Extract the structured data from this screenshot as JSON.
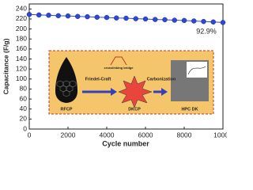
{
  "chart_data": {
    "type": "line",
    "x_label": "Cycle number",
    "y_label": "Capacitance (F/g)",
    "x": [
      0,
      500,
      1000,
      1500,
      2000,
      2500,
      3000,
      3500,
      4000,
      4500,
      5000,
      5500,
      6000,
      6500,
      7000,
      7500,
      8000,
      8500,
      9000,
      9500,
      10000
    ],
    "series": [
      {
        "color": "#2d48d8",
        "values": [
          229,
          228,
          227.5,
          226.5,
          226,
          225,
          224.5,
          223.5,
          223,
          222,
          221.5,
          220.5,
          220,
          219,
          218.5,
          217.5,
          217,
          216,
          215,
          214,
          213
        ]
      }
    ],
    "xlim": [
      0,
      10000
    ],
    "xticks": [
      0,
      2000,
      4000,
      6000,
      8000,
      10000
    ],
    "ylim": [
      0,
      250
    ],
    "yticks": [
      0,
      20,
      40,
      60,
      80,
      100,
      120,
      140,
      160,
      180,
      200,
      220,
      240
    ],
    "annotation": "92.9%",
    "inset": {
      "labels": [
        "RFCP",
        "Friedel-Craft",
        "crosslinking bridge",
        "DKCP",
        "Carbonization",
        "HPC DK"
      ]
    }
  }
}
